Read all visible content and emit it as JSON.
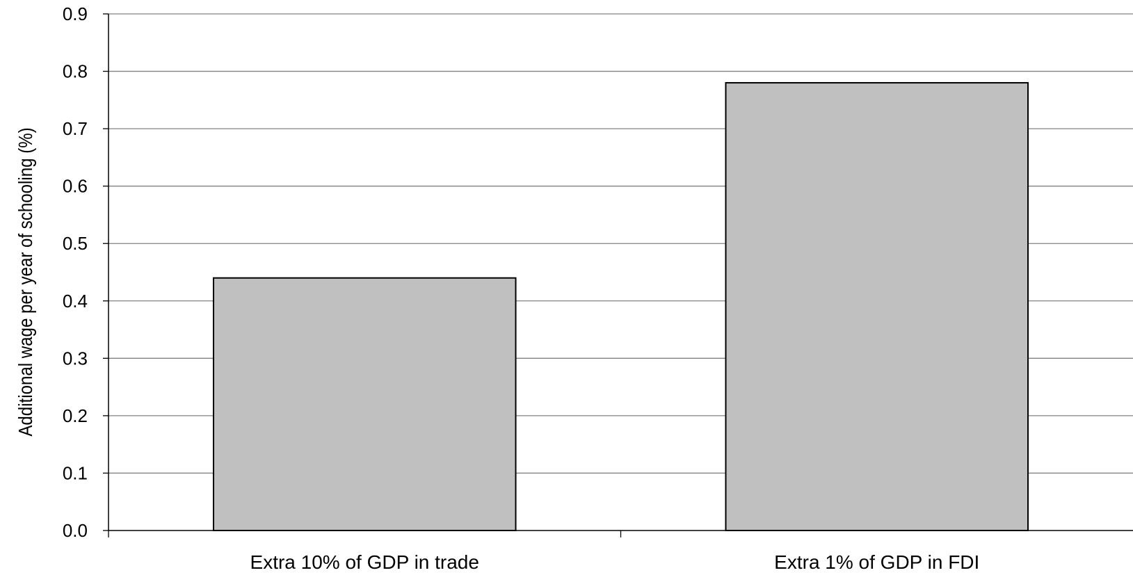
{
  "chart_data": {
    "type": "bar",
    "title": "",
    "xlabel": "",
    "ylabel": "Additional wage per year of schooling (%)",
    "categories": [
      "Extra 10% of GDP in trade",
      "Extra 1% of GDP in FDI"
    ],
    "values": [
      0.44,
      0.78
    ],
    "ylim": [
      0,
      0.9
    ],
    "yticks": [
      "0.0",
      "0.1",
      "0.2",
      "0.3",
      "0.4",
      "0.5",
      "0.6",
      "0.7",
      "0.8",
      "0.9"
    ],
    "grid": true,
    "legend": "none",
    "bar_color": "#c0c0c0",
    "bar_edge_color": "#000000",
    "grid_color": "#808080"
  }
}
